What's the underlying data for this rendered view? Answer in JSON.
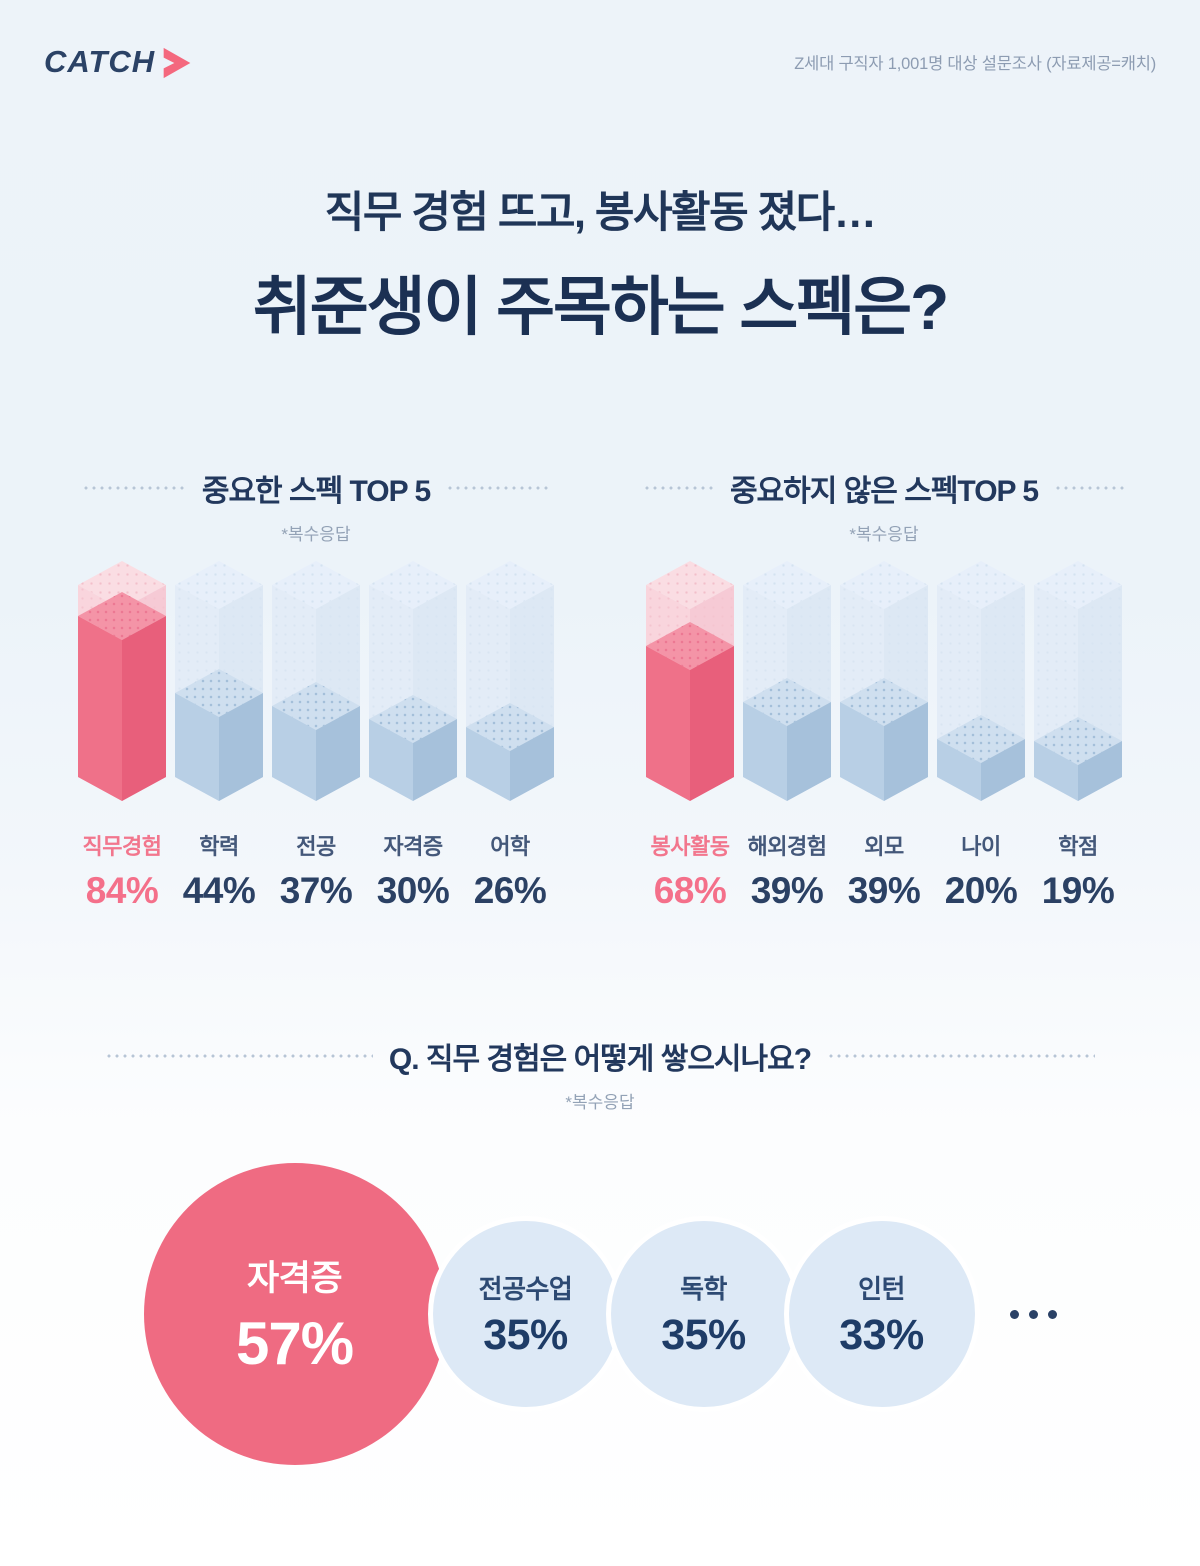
{
  "header": {
    "logo_text": "CATCH",
    "caption": "Z세대 구직자 1,001명 대상 설문조사 (자료제공=캐치)"
  },
  "title": {
    "subtitle": "직무 경험 뜨고, 봉사활동 졌다…",
    "main": "취준생이 주목하는 스펙은?"
  },
  "colors": {
    "brand_navy": "#1b3053",
    "brand_pink": "#ef6b82",
    "bar_blue": "#b8cfe5",
    "ghost_blue": "#e3ecf7",
    "bubble_blue": "#dde9f6"
  },
  "chart_data": [
    {
      "type": "bar",
      "title": "중요한 스펙 TOP 5",
      "note": "*복수응답",
      "categories": [
        "직무경험",
        "학력",
        "전공",
        "자격증",
        "어학"
      ],
      "values": [
        84,
        44,
        37,
        30,
        26
      ],
      "unit": "%",
      "highlight_index": 0,
      "ylim": [
        0,
        100
      ],
      "style": "isometric-3d-bars, ghost bar = 100%"
    },
    {
      "type": "bar",
      "title": "중요하지 않은 스펙TOP 5",
      "note": "*복수응답",
      "categories": [
        "봉사활동",
        "해외경험",
        "외모",
        "나이",
        "학점"
      ],
      "values": [
        68,
        39,
        39,
        20,
        19
      ],
      "unit": "%",
      "highlight_index": 0,
      "ylim": [
        0,
        100
      ],
      "style": "isometric-3d-bars, ghost bar = 100%"
    },
    {
      "type": "pie",
      "title": "Q. 직무 경험은 어떻게 쌓으시나요?",
      "note": "*복수응답",
      "categories": [
        "자격증",
        "전공수업",
        "독학",
        "인턴"
      ],
      "values": [
        57,
        35,
        35,
        33
      ],
      "unit": "%",
      "highlight_index": 0,
      "more_label": "...",
      "style": "proportional bubbles, first highlighted pink"
    }
  ]
}
